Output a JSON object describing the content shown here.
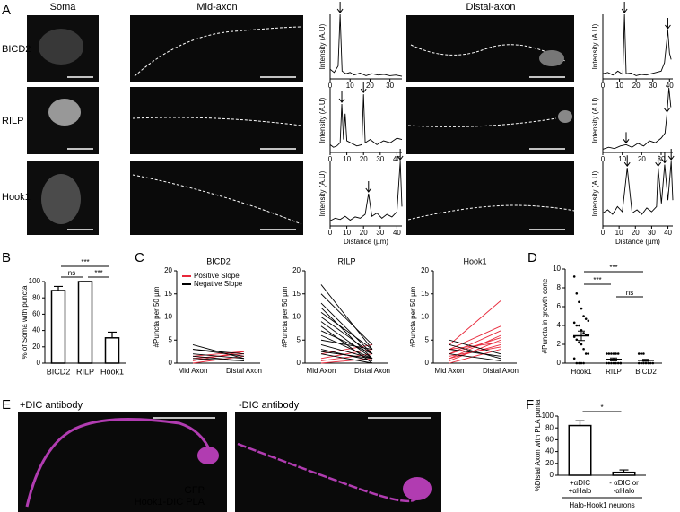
{
  "panel_labels": [
    "A",
    "B",
    "C",
    "D",
    "E",
    "F"
  ],
  "figure_a": {
    "columns": [
      "Soma",
      "Mid-axon",
      "Distal-axon"
    ],
    "rows": [
      "BICD2",
      "RILP",
      "Hook1"
    ]
  },
  "figure_e": {
    "conditions": [
      "+DIC antibody",
      "-DIC antibody"
    ],
    "channels": [
      {
        "name": "GFP",
        "color": "#d23cd2"
      },
      {
        "name": "Hook1-DIC PLA",
        "color": "#2f9a55"
      }
    ]
  },
  "chart_data": [
    {
      "type": "profile",
      "y_label": "Intensity (A.U)",
      "color": "#000000",
      "xlim": [
        0,
        36
      ],
      "xticks": [
        0,
        10,
        20,
        30
      ],
      "ylim": [
        0,
        100
      ],
      "x": [
        0,
        2,
        4,
        5,
        6,
        8,
        10,
        12,
        15,
        18,
        21,
        24,
        27,
        30,
        33,
        36
      ],
      "values": [
        15,
        10,
        20,
        100,
        12,
        8,
        10,
        6,
        9,
        5,
        8,
        6,
        7,
        5,
        6,
        4
      ],
      "arrows": [
        5
      ]
    },
    {
      "type": "profile",
      "y_label": "Intensity (A.U)",
      "color": "#000000",
      "xlim": [
        0,
        42
      ],
      "xticks": [
        0,
        10,
        20,
        30,
        40
      ],
      "ylim": [
        0,
        100
      ],
      "x": [
        0,
        3,
        6,
        9,
        12,
        13,
        14,
        17,
        20,
        23,
        26,
        29,
        32,
        35,
        37,
        39,
        40,
        41
      ],
      "values": [
        8,
        10,
        6,
        12,
        7,
        100,
        8,
        9,
        5,
        7,
        6,
        8,
        10,
        12,
        25,
        75,
        40,
        30
      ],
      "arrows": [
        13,
        39
      ]
    },
    {
      "type": "profile",
      "y_label": "Intensity (A.U)",
      "color": "#000000",
      "xlim": [
        0,
        43
      ],
      "xticks": [
        0,
        10,
        20,
        30,
        40
      ],
      "ylim": [
        0,
        100
      ],
      "x": [
        0,
        2,
        4,
        6,
        7,
        8,
        9,
        10,
        13,
        16,
        19,
        20,
        21,
        24,
        28,
        32,
        36,
        40,
        43
      ],
      "values": [
        12,
        8,
        10,
        15,
        75,
        20,
        60,
        18,
        14,
        10,
        12,
        90,
        15,
        20,
        12,
        18,
        15,
        22,
        20
      ],
      "arrows": [
        7,
        20
      ]
    },
    {
      "type": "profile",
      "y_label": "Intensity (A.U)",
      "color": "#000000",
      "xlim": [
        0,
        36
      ],
      "xticks": [
        0,
        10,
        20,
        30
      ],
      "ylim": [
        0,
        100
      ],
      "x": [
        0,
        3,
        6,
        9,
        12,
        15,
        18,
        21,
        24,
        27,
        30,
        32,
        33,
        34,
        35
      ],
      "values": [
        5,
        8,
        6,
        10,
        12,
        8,
        14,
        10,
        18,
        15,
        22,
        30,
        60,
        100,
        70
      ],
      "arrows": [
        12,
        33
      ]
    },
    {
      "type": "profile",
      "y_label": "Intensity (A.U)",
      "x_label": "Distance (µm)",
      "color": "#000000",
      "xlim": [
        0,
        43
      ],
      "xticks": [
        0,
        10,
        20,
        30,
        40
      ],
      "ylim": [
        0,
        100
      ],
      "x": [
        0,
        3,
        6,
        9,
        12,
        15,
        18,
        21,
        23,
        25,
        28,
        31,
        34,
        37,
        40,
        42,
        43
      ],
      "values": [
        8,
        12,
        10,
        15,
        9,
        14,
        12,
        18,
        50,
        15,
        20,
        12,
        18,
        14,
        22,
        100,
        30
      ],
      "arrows": [
        23,
        42
      ]
    },
    {
      "type": "profile",
      "y_label": "Intensity (A.U)",
      "x_label": "Distance (µm)",
      "color": "#000000",
      "xlim": [
        0,
        43
      ],
      "xticks": [
        0,
        10,
        20,
        30,
        40
      ],
      "ylim": [
        0,
        100
      ],
      "x": [
        0,
        3,
        6,
        9,
        12,
        15,
        18,
        21,
        24,
        27,
        30,
        33,
        34,
        36,
        38,
        40,
        42,
        43
      ],
      "values": [
        20,
        25,
        18,
        30,
        22,
        90,
        20,
        25,
        18,
        28,
        22,
        30,
        90,
        35,
        95,
        40,
        100,
        40
      ],
      "arrows": [
        15,
        34,
        38,
        42
      ]
    },
    {
      "type": "bar",
      "y_label": "% of Soma with puncta",
      "categories": [
        "BICD2",
        "RILP",
        "Hook1"
      ],
      "values": [
        89,
        100,
        31
      ],
      "errors": [
        5,
        0,
        7
      ],
      "ylim": [
        0,
        100
      ],
      "yticks": [
        0,
        20,
        40,
        60,
        80,
        100
      ],
      "color": "#ffffff",
      "significance": [
        {
          "pair": [
            0,
            2
          ],
          "label": "***"
        },
        {
          "pair": [
            0,
            1
          ],
          "label": "ns"
        },
        {
          "pair": [
            1,
            2
          ],
          "label": "***"
        }
      ]
    },
    {
      "type": "slope",
      "title": "BICD2",
      "y_label": "#Puncta per 50 µm",
      "categories": [
        "Mid Axon",
        "Distal Axon"
      ],
      "ylim": [
        0,
        20
      ],
      "yticks": [
        0,
        5,
        10,
        15,
        20
      ],
      "series": [
        {
          "name": "Positive Slope",
          "color": "#e8283a",
          "values": [
            [
              0.5,
              2.5
            ],
            [
              1,
              2
            ],
            [
              0,
              1.5
            ],
            [
              1.5,
              2.5
            ]
          ]
        },
        {
          "name": "Negative Slope",
          "color": "#000000",
          "values": [
            [
              4,
              1
            ],
            [
              3,
              1.5
            ],
            [
              2,
              1
            ],
            [
              1.5,
              0.5
            ],
            [
              1,
              0.5
            ],
            [
              3,
              2
            ]
          ]
        }
      ]
    },
    {
      "type": "slope",
      "title": "RILP",
      "y_label": "#Puncta per 50 µm",
      "categories": [
        "Mid Axon",
        "Distal Axon"
      ],
      "ylim": [
        0,
        20
      ],
      "yticks": [
        0,
        5,
        10,
        15,
        20
      ],
      "series": [
        {
          "color": "#e8283a",
          "values": [
            [
              1,
              3
            ],
            [
              0.5,
              2
            ],
            [
              2,
              4
            ],
            [
              0,
              1
            ]
          ]
        },
        {
          "color": "#000000",
          "values": [
            [
              17,
              3
            ],
            [
              15,
              4
            ],
            [
              13,
              2
            ],
            [
              12,
              1
            ],
            [
              11,
              3
            ],
            [
              10,
              2
            ],
            [
              9,
              1
            ],
            [
              8,
              0
            ],
            [
              7,
              2
            ],
            [
              6,
              1
            ],
            [
              5,
              3
            ],
            [
              4,
              1
            ],
            [
              3,
              0.5
            ],
            [
              2.5,
              1
            ],
            [
              2,
              0
            ]
          ]
        }
      ]
    },
    {
      "type": "slope",
      "title": "Hook1",
      "y_label": "#Puncta per 50 µm",
      "categories": [
        "Mid Axon",
        "Distal Axon"
      ],
      "ylim": [
        0,
        20
      ],
      "yticks": [
        0,
        5,
        10,
        15,
        20
      ],
      "series": [
        {
          "color": "#e8283a",
          "values": [
            [
              4,
              13.5
            ],
            [
              3,
              8
            ],
            [
              2,
              7
            ],
            [
              1,
              6
            ],
            [
              0.5,
              5
            ],
            [
              2,
              5.5
            ],
            [
              1,
              4
            ],
            [
              0,
              3
            ],
            [
              3,
              4.5
            ],
            [
              1.5,
              3.5
            ]
          ]
        },
        {
          "color": "#000000",
          "values": [
            [
              5,
              2
            ],
            [
              4,
              1
            ],
            [
              3,
              1.5
            ],
            [
              2,
              0.5
            ]
          ]
        }
      ]
    },
    {
      "type": "dot",
      "y_label": "#Puncta in growth cone",
      "categories": [
        "Hook1",
        "RILP",
        "BICD2"
      ],
      "points": [
        [
          9.2,
          7.4,
          6.5,
          5.8,
          5,
          4.7,
          4.5,
          4.3,
          4,
          4,
          3.5,
          3.2,
          3,
          3,
          2.8,
          2.5,
          2.2,
          2,
          1.5,
          1,
          1,
          0.5,
          0,
          0,
          0,
          0
        ],
        [
          1,
          1,
          1,
          1,
          1,
          1,
          0,
          0,
          0,
          0,
          0,
          0,
          0,
          0
        ],
        [
          1,
          1,
          1,
          0,
          0,
          0,
          0,
          0,
          0,
          0
        ]
      ],
      "means": [
        2.9,
        0.4,
        0.3
      ],
      "errors": [
        0.5,
        0.15,
        0.1
      ],
      "ylim": [
        0,
        10
      ],
      "yticks": [
        0,
        2,
        4,
        6,
        8,
        10
      ],
      "significance": [
        {
          "pair": [
            0,
            2
          ],
          "label": "***"
        },
        {
          "pair": [
            0,
            1
          ],
          "label": "***"
        },
        {
          "pair": [
            1,
            2
          ],
          "label": "ns"
        }
      ]
    },
    {
      "type": "bar",
      "y_label": "%Distal Axon with PLA punta",
      "categories": [
        [
          "+αDIC",
          "+αHalo"
        ],
        [
          "- αDIC or",
          "-αHalo"
        ]
      ],
      "values": [
        84,
        5
      ],
      "errors": [
        8,
        4
      ],
      "ylim": [
        0,
        100
      ],
      "yticks": [
        0,
        20,
        40,
        60,
        80,
        100
      ],
      "color": "#ffffff",
      "group_label": "Halo-Hook1 neurons",
      "significance": [
        {
          "pair": [
            0,
            1
          ],
          "label": "*"
        }
      ]
    }
  ]
}
